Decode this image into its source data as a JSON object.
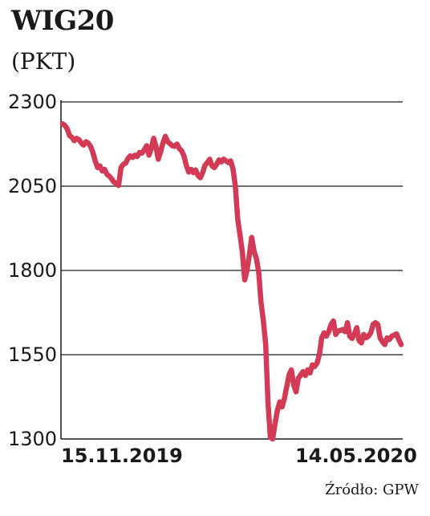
{
  "chart_data": {
    "type": "line",
    "title": "WIG20",
    "unit": "(PKT)",
    "yticks": [
      2300,
      2050,
      1800,
      1550,
      1300
    ],
    "ylim": [
      1300,
      2300
    ],
    "x_labels": [
      "15.11.2019",
      "14.05.2020"
    ],
    "grid": "horizontal",
    "source": "Źródło: GPW",
    "line_color": "#d23a55",
    "series": [
      {
        "values": [
          2235,
          2230,
          2220,
          2200,
          2195,
          2185,
          2192,
          2188,
          2178,
          2172,
          2182,
          2178,
          2168,
          2150,
          2125,
          2105,
          2110,
          2095,
          2100,
          2085,
          2080,
          2072,
          2062,
          2058,
          2052,
          2105,
          2115,
          2118,
          2132,
          2140,
          2135,
          2142,
          2138,
          2150,
          2148,
          2158,
          2170,
          2142,
          2162,
          2192,
          2168,
          2130,
          2152,
          2178,
          2198,
          2182,
          2176,
          2170,
          2168,
          2175,
          2162,
          2155,
          2140,
          2112,
          2092,
          2100,
          2090,
          2098,
          2082,
          2075,
          2090,
          2112,
          2120,
          2130,
          2110,
          2105,
          2115,
          2128,
          2122,
          2130,
          2125,
          2120,
          2125,
          2100,
          2050,
          1952,
          1905,
          1855,
          1772,
          1800,
          1845,
          1898,
          1858,
          1835,
          1795,
          1705,
          1650,
          1580,
          1405,
          1305,
          1300,
          1345,
          1385,
          1410,
          1395,
          1420,
          1455,
          1490,
          1505,
          1460,
          1440,
          1480,
          1490,
          1500,
          1488,
          1505,
          1496,
          1520,
          1515,
          1525,
          1550,
          1600,
          1615,
          1605,
          1618,
          1640,
          1650,
          1610,
          1620,
          1622,
          1625,
          1618,
          1645,
          1605,
          1598,
          1612,
          1630,
          1592,
          1585,
          1610,
          1600,
          1605,
          1615,
          1640,
          1645,
          1640,
          1600,
          1588,
          1580,
          1600,
          1595,
          1605,
          1608,
          1612,
          1595,
          1580
        ]
      }
    ]
  }
}
